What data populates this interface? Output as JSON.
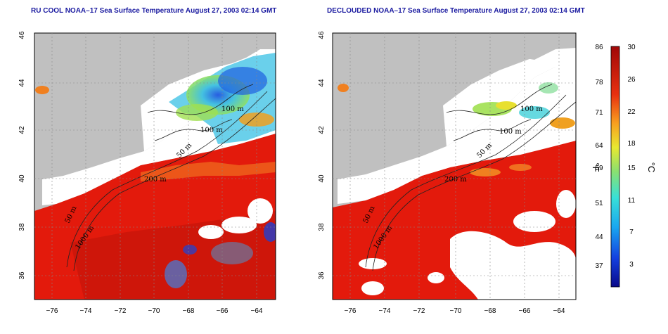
{
  "panels": [
    {
      "title": "RU COOL NOAA–17 Sea Surface Temperature August 27, 2003 02:14 GMT",
      "variant": "cloudy"
    },
    {
      "title": "DECLOUDED NOAA–17 Sea Surface Temperature August 27, 2003 02:14 GMT",
      "variant": "declouded"
    }
  ],
  "x_ticks": [
    "−76",
    "−74",
    "−72",
    "−70",
    "−68",
    "−66",
    "−64"
  ],
  "y_ticks": [
    "46",
    "44",
    "42",
    "40",
    "38",
    "36"
  ],
  "contour_labels": [
    "100 m",
    "100 m",
    "50 m",
    "200 m",
    "50 m",
    "1000 m"
  ],
  "colorbar": {
    "fahrenheit_ticks": [
      "86",
      "78",
      "71",
      "64",
      "59",
      "51",
      "44",
      "37"
    ],
    "celsius_ticks": [
      "30",
      "26",
      "22",
      "18",
      "15",
      "11",
      "7",
      "3"
    ],
    "fahrenheit_label": "°F",
    "celsius_label": "°C"
  },
  "colors": {
    "land": "#c0c0c0",
    "cloud": "#ffffff",
    "title": "#1a1aa0",
    "warm": "#e31a0c",
    "cold": "#0a1aa0"
  }
}
